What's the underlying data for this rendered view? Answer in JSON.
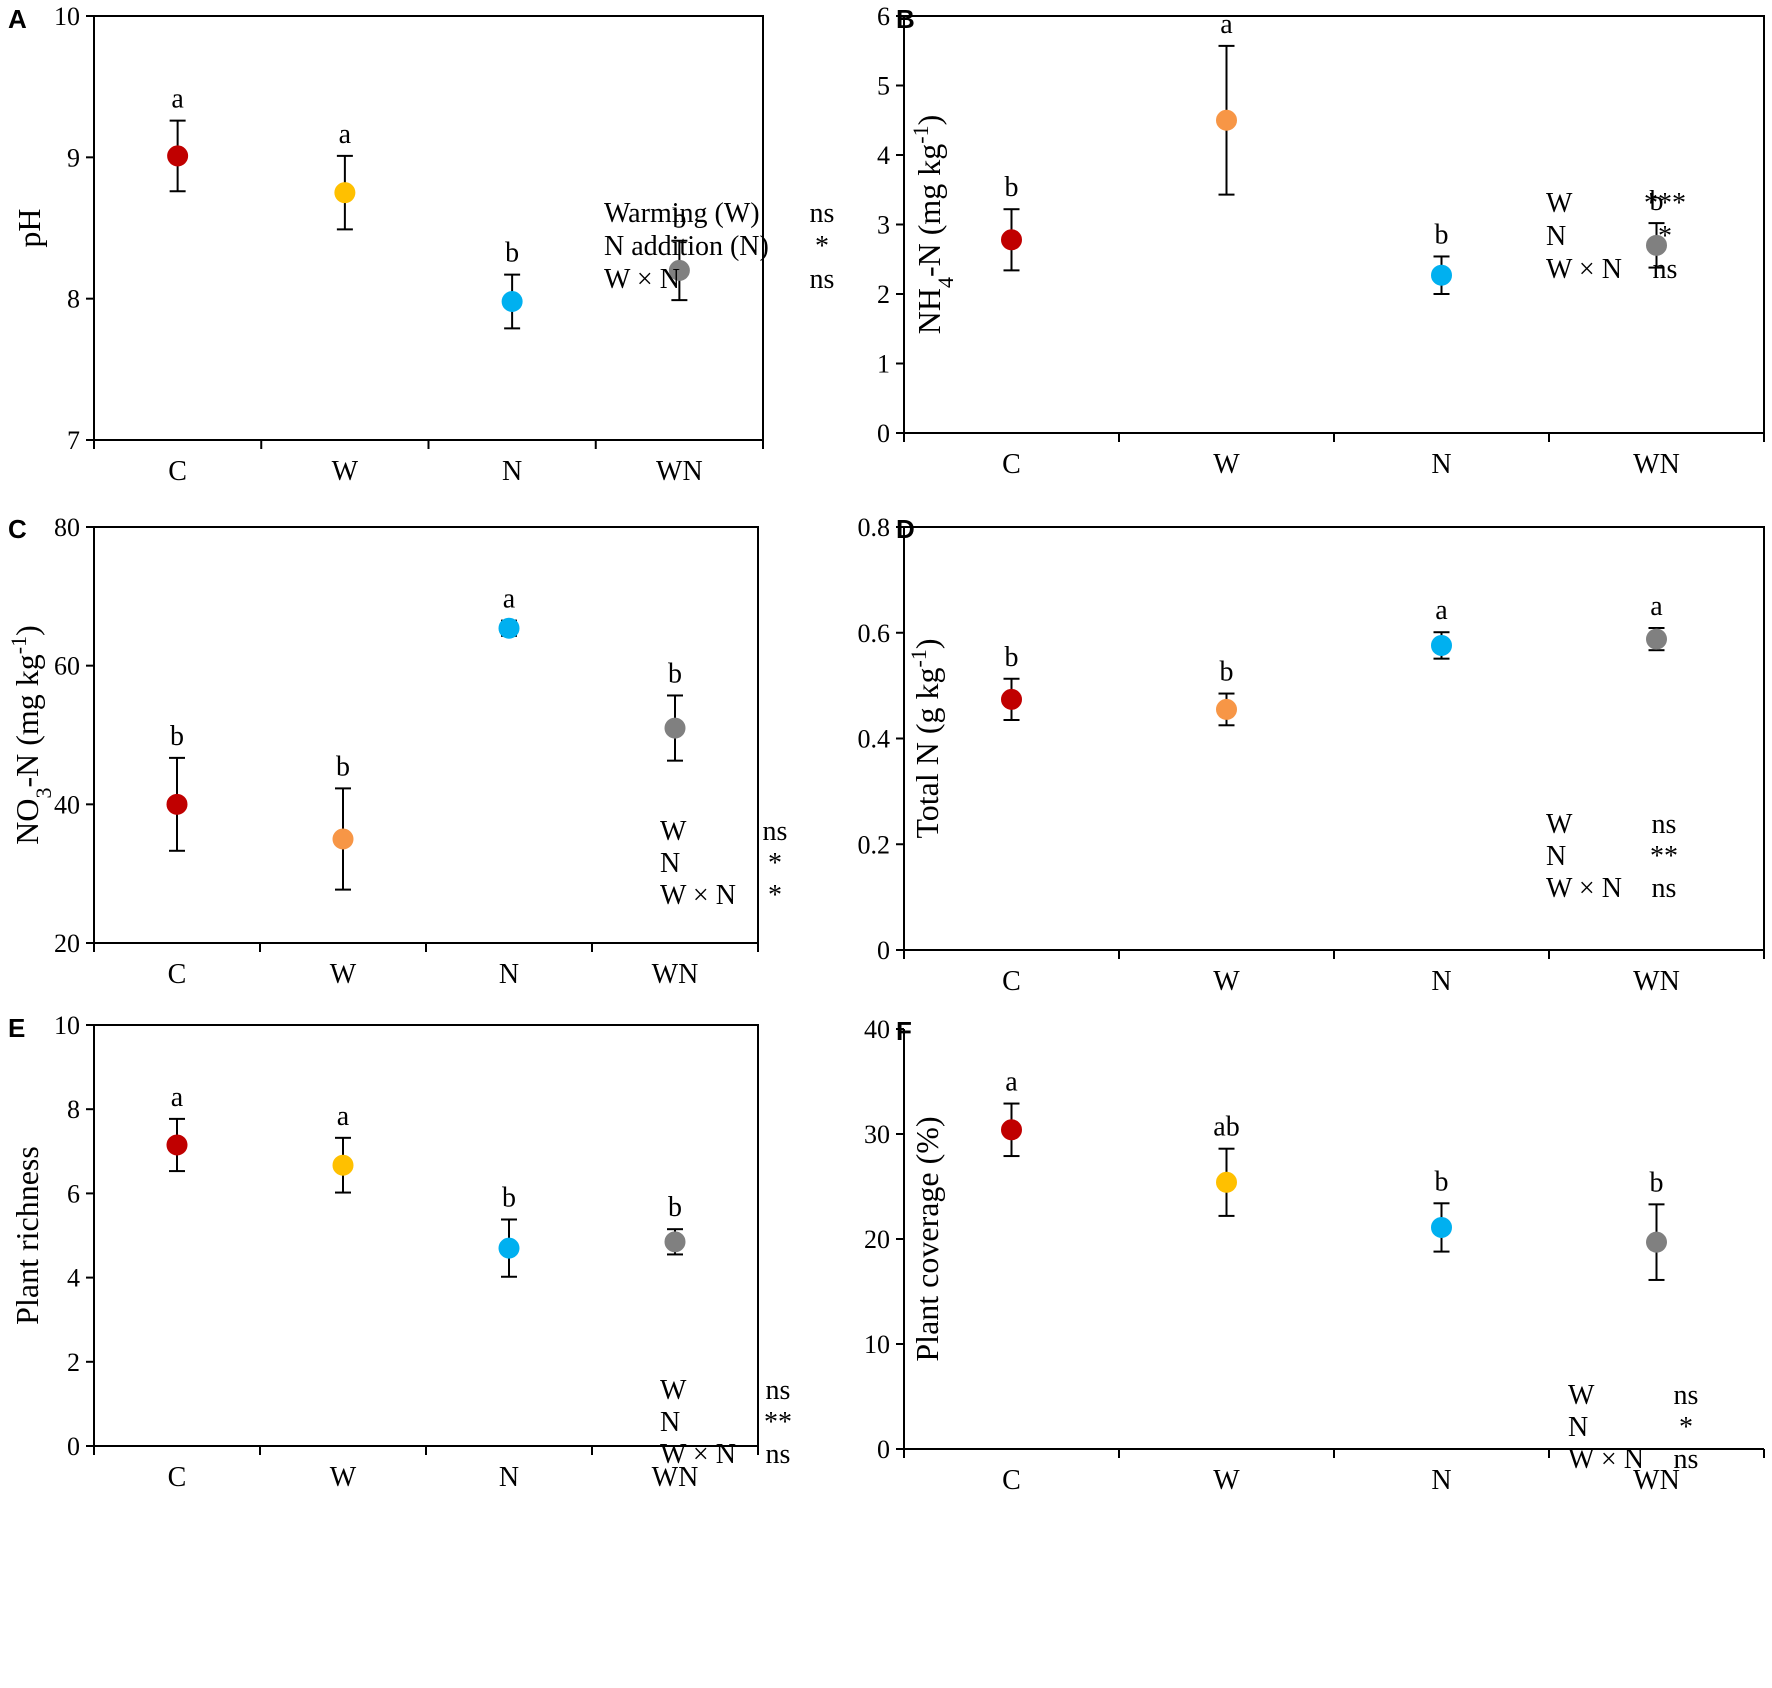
{
  "chart_data": [
    {
      "type": "scatter",
      "panel": "A",
      "ylabel": "pH",
      "ylim": [
        7,
        10
      ],
      "yticks": [
        7,
        8,
        9,
        10
      ],
      "categories": [
        "C",
        "W",
        "N",
        "WN"
      ],
      "values": [
        9.01,
        8.75,
        7.98,
        8.2
      ],
      "errors": [
        0.25,
        0.26,
        0.19,
        0.21
      ],
      "colors": [
        "#c00000",
        "#ffc000",
        "#00b0f0",
        "#808080"
      ],
      "letters": [
        "a",
        "a",
        "b",
        "b"
      ],
      "stats": [
        {
          "term": "Warming (W)",
          "sig": "ns"
        },
        {
          "term": "N addition (N)",
          "sig": "*"
        },
        {
          "term": "W × N",
          "sig": "ns"
        }
      ]
    },
    {
      "type": "scatter",
      "panel": "B",
      "ylabel": "NH4-N (mg kg-1)",
      "ylabel_parts": {
        "main": "NH",
        "sub": "4",
        "rest": "-N (mg kg",
        "sup": "-1",
        "end": ")"
      },
      "ylim": [
        0,
        6
      ],
      "yticks": [
        0,
        1,
        2,
        3,
        4,
        5,
        6
      ],
      "categories": [
        "C",
        "W",
        "N",
        "WN"
      ],
      "values": [
        2.78,
        4.5,
        2.27,
        2.7
      ],
      "errors": [
        0.44,
        1.07,
        0.27,
        0.32
      ],
      "colors": [
        "#c00000",
        "#f79646",
        "#00b0f0",
        "#808080"
      ],
      "letters": [
        "b",
        "a",
        "b",
        "b"
      ],
      "stats": [
        {
          "term": "W",
          "sig": "***"
        },
        {
          "term": "N",
          "sig": "*"
        },
        {
          "term": "W × N",
          "sig": "ns"
        }
      ]
    },
    {
      "type": "scatter",
      "panel": "C",
      "ylabel": "NO3-N (mg kg-1)",
      "ylabel_parts": {
        "main": "NO",
        "sub": "3",
        "rest": "-N (mg kg",
        "sup": "-1",
        "end": ")"
      },
      "ylim": [
        20,
        80
      ],
      "yticks": [
        20,
        40,
        60,
        80
      ],
      "categories": [
        "C",
        "W",
        "N",
        "WN"
      ],
      "values": [
        40.0,
        35.0,
        65.4,
        51.0
      ],
      "errors": [
        6.7,
        7.3,
        1.1,
        4.7
      ],
      "colors": [
        "#c00000",
        "#f79646",
        "#00b0f0",
        "#808080"
      ],
      "letters": [
        "b",
        "b",
        "a",
        "b"
      ],
      "stats": [
        {
          "term": "W",
          "sig": "ns"
        },
        {
          "term": "N",
          "sig": "*"
        },
        {
          "term": "W × N",
          "sig": "*"
        }
      ]
    },
    {
      "type": "scatter",
      "panel": "D",
      "ylabel": "Total N (g kg-1)",
      "ylabel_parts": {
        "main": "Total N (g kg",
        "sub": "",
        "rest": "",
        "sup": "-1",
        "end": ")"
      },
      "ylim": [
        0,
        0.8
      ],
      "yticks": [
        "0",
        "0.2",
        "0.4",
        "0.6",
        "0.8"
      ],
      "categories": [
        "C",
        "W",
        "N",
        "WN"
      ],
      "values": [
        0.474,
        0.455,
        0.576,
        0.588
      ],
      "errors": [
        0.039,
        0.03,
        0.025,
        0.021
      ],
      "colors": [
        "#c00000",
        "#f79646",
        "#00b0f0",
        "#808080"
      ],
      "letters": [
        "b",
        "b",
        "a",
        "a"
      ],
      "stats": [
        {
          "term": "W",
          "sig": "ns"
        },
        {
          "term": "N",
          "sig": "**"
        },
        {
          "term": "W × N",
          "sig": "ns"
        }
      ]
    },
    {
      "type": "scatter",
      "panel": "E",
      "ylabel": "Plant richness",
      "ylim": [
        0,
        10
      ],
      "yticks": [
        0,
        2,
        4,
        6,
        8,
        10
      ],
      "categories": [
        "C",
        "W",
        "N",
        "WN"
      ],
      "values": [
        7.15,
        6.67,
        4.7,
        4.85
      ],
      "errors": [
        0.62,
        0.65,
        0.68,
        0.3
      ],
      "colors": [
        "#c00000",
        "#ffc000",
        "#00b0f0",
        "#808080"
      ],
      "letters": [
        "a",
        "a",
        "b",
        "b"
      ],
      "stats": [
        {
          "term": "W",
          "sig": "ns"
        },
        {
          "term": "N",
          "sig": "**"
        },
        {
          "term": "W × N",
          "sig": "ns"
        }
      ]
    },
    {
      "type": "scatter",
      "panel": "F",
      "ylabel": "Plant coverage (%)",
      "ylim": [
        0,
        40
      ],
      "yticks": [
        0,
        10,
        20,
        30,
        40
      ],
      "categories": [
        "C",
        "W",
        "N",
        "WN"
      ],
      "values": [
        30.4,
        25.4,
        21.1,
        19.7
      ],
      "errors": [
        2.5,
        3.2,
        2.3,
        3.6
      ],
      "colors": [
        "#c00000",
        "#ffc000",
        "#00b0f0",
        "#808080"
      ],
      "letters": [
        "a",
        "ab",
        "b",
        "b"
      ],
      "stats": [
        {
          "term": "W",
          "sig": "ns"
        },
        {
          "term": "N",
          "sig": "*"
        },
        {
          "term": "W × N",
          "sig": "ns"
        }
      ]
    }
  ]
}
